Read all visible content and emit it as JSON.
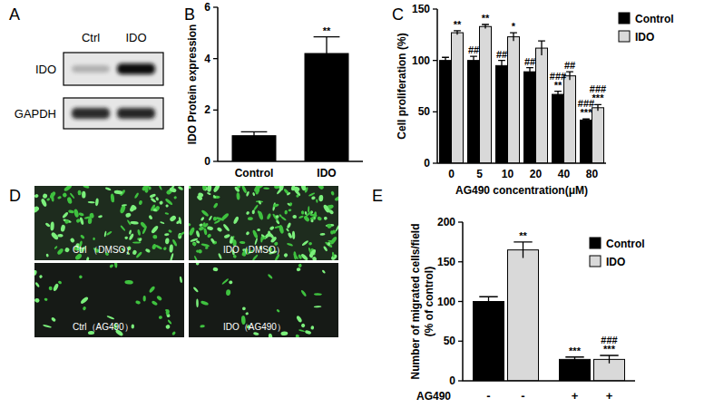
{
  "panel_labels": [
    "A",
    "B",
    "C",
    "D",
    "E"
  ],
  "blot": {
    "lanes": [
      "Ctrl",
      "IDO"
    ],
    "rows": [
      "IDO",
      "GAPDH"
    ]
  },
  "images": {
    "captions": [
      "Ctrl （DMSO）",
      "IDO（DMSO）",
      "Ctrl（AG490）",
      "IDO（AG490）"
    ]
  },
  "chart_data": [
    {
      "type": "bar",
      "y_label": "IDO Protein expression",
      "categories": [
        "Control",
        "IDO"
      ],
      "values": [
        1,
        4.2
      ],
      "errors": [
        0.15,
        0.65
      ],
      "annotations": [
        [],
        [
          "**"
        ]
      ],
      "color": "#000000",
      "ylim": [
        0,
        6
      ],
      "yticks": [
        0,
        2,
        4,
        6
      ]
    },
    {
      "type": "bar",
      "y_label": "Cell proliferation (%)",
      "x_label": "AG490 concentration(μM)",
      "categories": [
        "0",
        "5",
        "10",
        "20",
        "40",
        "80"
      ],
      "series": [
        {
          "name": "Control",
          "color": "#000000",
          "values": [
            100,
            100,
            95,
            89,
            67,
            42
          ],
          "errors": [
            3,
            4,
            5,
            4,
            3,
            1
          ],
          "annotations": [
            [],
            [
              "##"
            ],
            [
              "##"
            ],
            [
              "##"
            ],
            [
              "###",
              "**"
            ],
            [
              "###",
              "***"
            ]
          ]
        },
        {
          "name": "IDO",
          "color": "#d9d9d9",
          "values": [
            127,
            133,
            123,
            112,
            85,
            54
          ],
          "errors": [
            2,
            2,
            4,
            7,
            4,
            3
          ],
          "annotations": [
            [
              "**"
            ],
            [
              "**"
            ],
            [
              "*"
            ],
            [],
            [
              "##"
            ],
            [
              "###",
              "***"
            ]
          ]
        }
      ],
      "ylim": [
        0,
        150
      ],
      "yticks": [
        0,
        50,
        100,
        150
      ],
      "legend": "upper right"
    },
    {
      "type": "bar",
      "y_label": "Number of migrated cells/field (% of control)",
      "x_label": "AG490",
      "categories": [
        "-",
        "+"
      ],
      "series": [
        {
          "name": "Control",
          "color": "#000000",
          "values": [
            100,
            27
          ],
          "errors": [
            6,
            3
          ],
          "annotations": [
            [],
            [
              "***"
            ]
          ]
        },
        {
          "name": "IDO",
          "color": "#d9d9d9",
          "values": [
            165,
            27
          ],
          "errors": [
            10,
            5
          ],
          "annotations": [
            [
              "**"
            ],
            [
              "###",
              "***"
            ]
          ]
        }
      ],
      "ylim": [
        0,
        200
      ],
      "yticks": [
        0,
        50,
        100,
        150,
        200
      ],
      "legend": "upper right"
    }
  ]
}
